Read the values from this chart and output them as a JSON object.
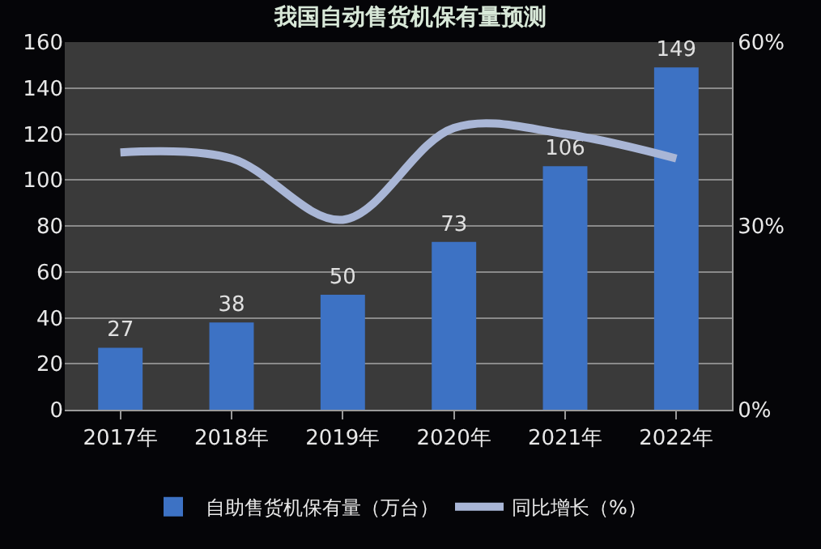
{
  "chart_data": {
    "type": "bar",
    "title": "我国自动售货机保有量预测",
    "categories": [
      "2017年",
      "2018年",
      "2019年",
      "2020年",
      "2021年",
      "2022年"
    ],
    "series": [
      {
        "name": "自助售货机保有量（万台）",
        "color": "#3d72c4",
        "values": [
          27,
          38,
          50,
          73,
          106,
          149
        ],
        "data_labels": true
      },
      {
        "name": "同比增长（%）",
        "type": "line",
        "axis": "y2",
        "color": "#a9b6d6",
        "values": [
          42,
          41,
          31,
          46,
          45,
          41
        ],
        "marker": "none",
        "line_style": "solid"
      }
    ],
    "ylim": [
      0,
      160
    ],
    "yticks": [
      0,
      20,
      40,
      60,
      80,
      100,
      120,
      140,
      160
    ],
    "y2lim": [
      0,
      60
    ],
    "y2ticks": [
      {
        "value": 0,
        "label": "0%"
      },
      {
        "value": 30,
        "label": "30%"
      },
      {
        "value": 60,
        "label": "60%"
      }
    ],
    "grid": "y",
    "legend": "bottom"
  }
}
